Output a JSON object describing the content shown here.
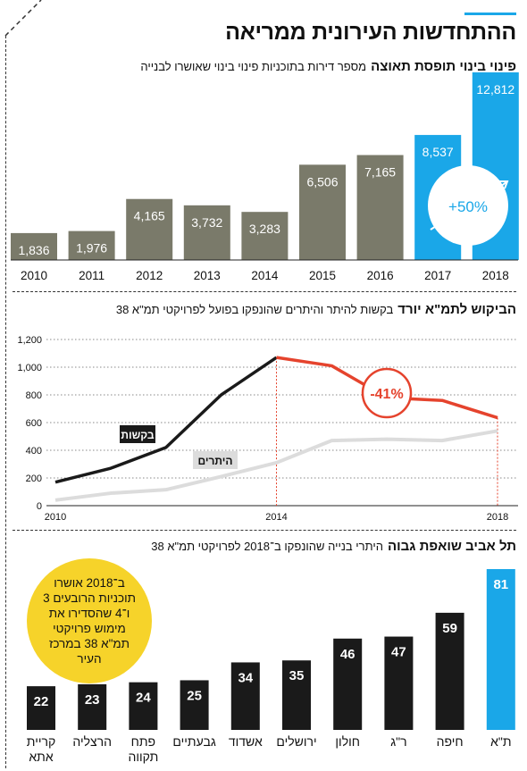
{
  "title": "ההתחדשות העירונית ממריאה",
  "colors": {
    "accent": "#1aa7e8",
    "bar": "#7a7a6a",
    "red": "#e5432d",
    "black": "#1a1a1a",
    "grey": "#dcdcdc",
    "yellow": "#f6d32a"
  },
  "sections": {
    "s1": {
      "bold": "פינוי בינוי תופסת תאוצה",
      "desc": "מספר דירות בתוכניות פינוי בינוי שאושרו לבנייה"
    },
    "s2": {
      "bold": "הביקוש לתמ\"א יורד",
      "desc": "בקשות להיתר והיתרים שהונפקו בפועל לפרויקטי תמ\"א 38"
    },
    "s3": {
      "bold": "תל אביב שואפת גבוה",
      "desc": "היתרי בנייה שהונפקו ב־2018 לפרויקטי תמ\"א 38"
    }
  },
  "callout": {
    "text": "ב־2018 אושרו תוכניות הרובעים 3 ו־4 שהסדירו את מימוש פרויקטי תמ\"א 38 במרכז העיר"
  },
  "chart_data": [
    {
      "type": "bar",
      "categories": [
        "2010",
        "2011",
        "2012",
        "2013",
        "2014",
        "2015",
        "2016",
        "2017",
        "2018"
      ],
      "values": [
        1836,
        1976,
        4165,
        3732,
        3283,
        6506,
        7165,
        8537,
        12812
      ],
      "value_labels": [
        "1,836",
        "1,976",
        "4,165",
        "3,732",
        "3,283",
        "6,506",
        "7,165",
        "8,537",
        "12,812"
      ],
      "highlight": [
        "2017",
        "2018"
      ],
      "annotation": "+50%"
    },
    {
      "type": "line",
      "x": [
        2010,
        2011,
        2012,
        2013,
        2014,
        2015,
        2016,
        2017,
        2018
      ],
      "x_ticks": [
        "2010",
        "2014",
        "2018"
      ],
      "y_ticks": [
        "0",
        "200",
        "400",
        "600",
        "800",
        "1,000",
        "1,200"
      ],
      "ylim": [
        0,
        1200
      ],
      "series": [
        {
          "name": "בקשות",
          "values": [
            170,
            270,
            420,
            800,
            1070,
            1010,
            780,
            760,
            635
          ]
        },
        {
          "name": "היתרים",
          "values": [
            40,
            90,
            115,
            210,
            310,
            470,
            480,
            470,
            540
          ]
        }
      ],
      "annotation": "-41%"
    },
    {
      "type": "bar",
      "categories": [
        "קריית אתא",
        "הרצליה",
        "פתח תקווה",
        "גבעתיים",
        "אשדוד",
        "ירושלים",
        "חולון",
        "ר\"ג",
        "חיפה",
        "ת\"א"
      ],
      "values": [
        22,
        23,
        24,
        25,
        34,
        35,
        46,
        47,
        59,
        81
      ],
      "highlight": [
        "ת\"א"
      ]
    }
  ]
}
